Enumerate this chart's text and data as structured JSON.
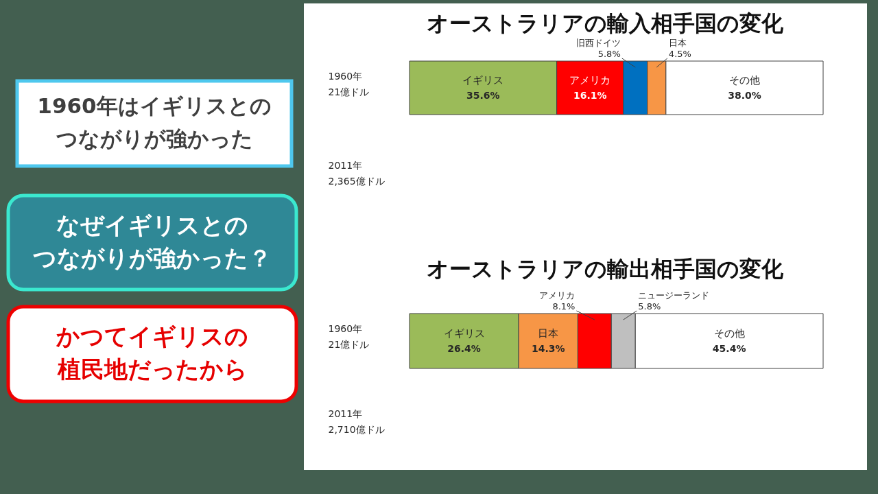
{
  "chart_data": [
    {
      "type": "bar",
      "orientation": "horizontal",
      "stacked": true,
      "title": "オーストラリアの輸入相手国の変化",
      "categories": [
        "1960年\n21億ドル",
        "2011年\n2,365億ドル"
      ],
      "xlim": [
        0,
        100
      ],
      "tick_labels": "y",
      "series": [
        {
          "name": "イギリス",
          "color": "#9bbb59",
          "values": [
            35.6,
            null
          ],
          "value_labels": [
            "35.6%",
            null
          ]
        },
        {
          "name": "アメリカ",
          "color": "#ff0000",
          "values": [
            16.1,
            null
          ],
          "value_labels": [
            "16.1%",
            null
          ]
        },
        {
          "name": "旧西ドイツ",
          "color": "#0070c0",
          "values": [
            5.8,
            null
          ],
          "value_labels": [
            "5.8%",
            null
          ]
        },
        {
          "name": "日本",
          "color": "#f79646",
          "values": [
            4.5,
            null
          ],
          "value_labels": [
            "4.5%",
            null
          ]
        },
        {
          "name": "その他",
          "color": "#ffffff",
          "values": [
            38.0,
            null
          ],
          "value_labels": [
            "38.0%",
            null
          ]
        }
      ]
    },
    {
      "type": "bar",
      "orientation": "horizontal",
      "stacked": true,
      "title": "オーストラリアの輸出相手国の変化",
      "categories": [
        "1960年\n21億ドル",
        "2011年\n2,710億ドル"
      ],
      "xlim": [
        0,
        100
      ],
      "tick_labels": "y",
      "series": [
        {
          "name": "イギリス",
          "color": "#9bbb59",
          "values": [
            26.4,
            null
          ],
          "value_labels": [
            "26.4%",
            null
          ]
        },
        {
          "name": "日本",
          "color": "#f79646",
          "values": [
            14.3,
            null
          ],
          "value_labels": [
            "14.3%",
            null
          ]
        },
        {
          "name": "アメリカ",
          "color": "#ff0000",
          "values": [
            8.1,
            null
          ],
          "value_labels": [
            "8.1%",
            null
          ]
        },
        {
          "name": "ニュージーランド",
          "color": "#bfbfbf",
          "values": [
            5.8,
            null
          ],
          "value_labels": [
            "5.8%",
            null
          ]
        },
        {
          "name": "その他",
          "color": "#ffffff",
          "values": [
            45.4,
            null
          ],
          "value_labels": [
            "45.4%",
            null
          ]
        }
      ]
    },
    {
      "type": "other",
      "annotations": [
        "1960年はイギリスとのつながりが強かった",
        "なぜイギリスとのつながりが強かった？",
        "かつてイギリスの植民地だったから"
      ]
    }
  ]
}
